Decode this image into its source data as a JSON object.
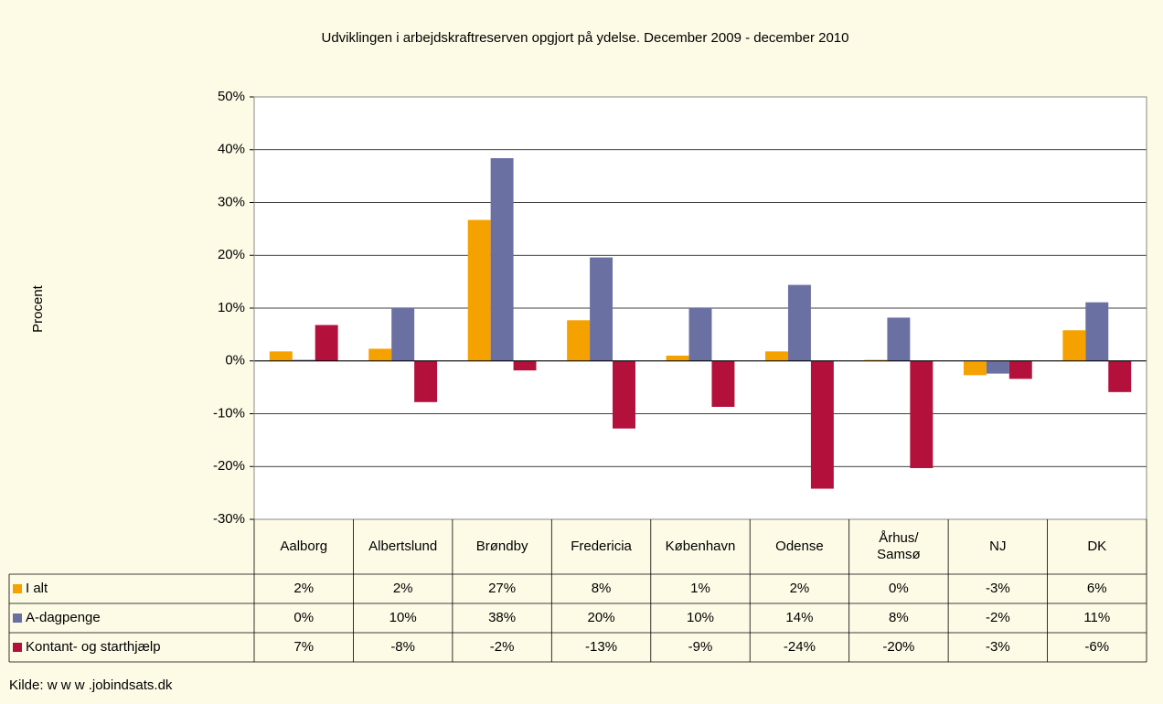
{
  "chart_data": {
    "type": "bar",
    "title": "Udviklingen i arbejdskraftreserven opgjort på ydelse. December 2009 - december 2010",
    "ylabel": "Procent",
    "source": "Kilde: w w w .jobindsats.dk",
    "categories": [
      "Aalborg",
      "Albertslund",
      "Brøndby",
      "Fredericia",
      "København",
      "Odense",
      "Århus/\nSamsø",
      "NJ",
      "DK"
    ],
    "series": [
      {
        "name": "I alt",
        "color": "#f5a100",
        "values": [
          1.8,
          2.3,
          26.7,
          7.7,
          1.0,
          1.8,
          0.2,
          -2.7,
          5.8
        ],
        "value_labels": [
          "2%",
          "2%",
          "27%",
          "8%",
          "1%",
          "2%",
          "0%",
          "-3%",
          "6%"
        ]
      },
      {
        "name": "A-dagpenge",
        "color": "#6b70a3",
        "values": [
          0.2,
          10.0,
          38.4,
          19.6,
          10.0,
          14.4,
          8.2,
          -2.4,
          11.1
        ],
        "value_labels": [
          "0%",
          "10%",
          "38%",
          "20%",
          "10%",
          "14%",
          "8%",
          "-2%",
          "11%"
        ]
      },
      {
        "name": "Kontant- og starthjælp",
        "color": "#b3103b",
        "values": [
          6.8,
          -7.8,
          -1.8,
          -12.8,
          -8.7,
          -24.2,
          -20.3,
          -3.4,
          -5.9
        ],
        "value_labels": [
          "7%",
          "-8%",
          "-2%",
          "-13%",
          "-9%",
          "-24%",
          "-20%",
          "-3%",
          "-6%"
        ]
      }
    ],
    "ylim": [
      -30,
      50
    ],
    "yticks": [
      {
        "value": -30,
        "label": "-30%"
      },
      {
        "value": -20,
        "label": "-20%"
      },
      {
        "value": -10,
        "label": "-10%"
      },
      {
        "value": 0,
        "label": "0%"
      },
      {
        "value": 10,
        "label": "10%"
      },
      {
        "value": 20,
        "label": "20%"
      },
      {
        "value": 30,
        "label": "30%"
      },
      {
        "value": 40,
        "label": "40%"
      },
      {
        "value": 50,
        "label": "50%"
      }
    ],
    "grid": true
  }
}
